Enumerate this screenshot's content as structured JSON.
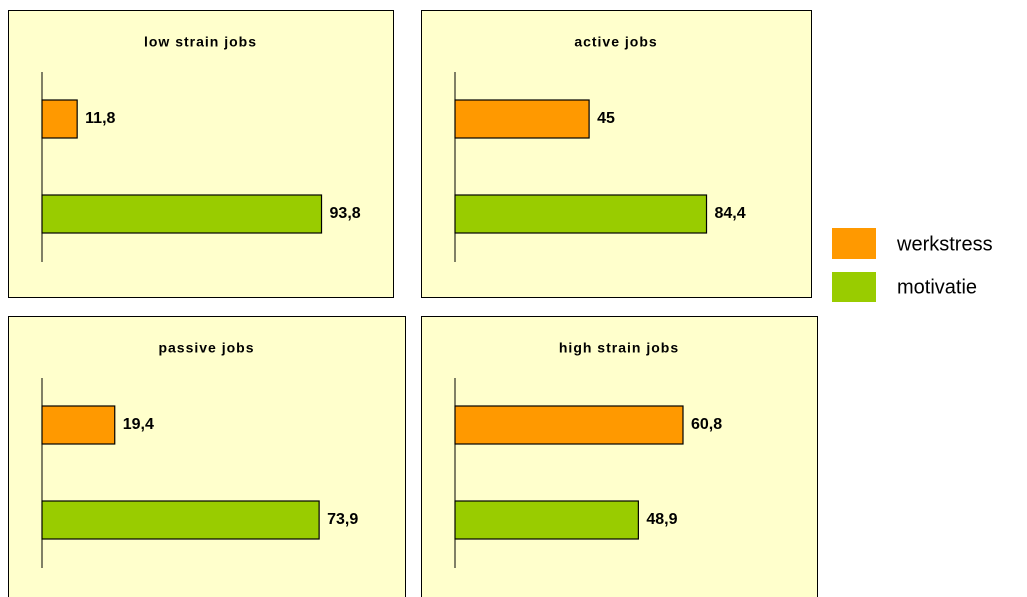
{
  "chart_data": [
    {
      "type": "bar",
      "orientation": "horizontal",
      "title": "low strain jobs",
      "xlim": [
        0,
        100
      ],
      "series": [
        {
          "name": "werkstress",
          "color": "#ff9900",
          "values": [
            11.8
          ],
          "value_labels": [
            "11,8"
          ]
        },
        {
          "name": "motivatie",
          "color": "#99cc00",
          "values": [
            93.8
          ],
          "value_labels": [
            "93,8"
          ]
        }
      ]
    },
    {
      "type": "bar",
      "orientation": "horizontal",
      "title": "active jobs",
      "xlim": [
        0,
        100
      ],
      "series": [
        {
          "name": "werkstress",
          "color": "#ff9900",
          "values": [
            45
          ]
        },
        {
          "name": "motivatie",
          "color": "#99cc00",
          "values": [
            84.4
          ],
          "value_labels": [
            "84,4"
          ]
        }
      ]
    },
    {
      "type": "bar",
      "orientation": "horizontal",
      "title": "passive jobs",
      "xlim": [
        0,
        80
      ],
      "series": [
        {
          "name": "werkstress",
          "color": "#ff9900",
          "values": [
            19.4
          ],
          "value_labels": [
            "19,4"
          ]
        },
        {
          "name": "motivatie",
          "color": "#99cc00",
          "values": [
            73.9
          ],
          "value_labels": [
            "73,9"
          ]
        }
      ]
    },
    {
      "type": "bar",
      "orientation": "horizontal",
      "title": "high strain jobs",
      "xlim": [
        0,
        80
      ],
      "series": [
        {
          "name": "werkstress",
          "color": "#ff9900",
          "values": [
            60.8
          ],
          "value_labels": [
            "60,8"
          ]
        },
        {
          "name": "motivatie",
          "color": "#99cc00",
          "values": [
            48.9
          ],
          "value_labels": [
            "48,9"
          ]
        }
      ]
    }
  ]
}
